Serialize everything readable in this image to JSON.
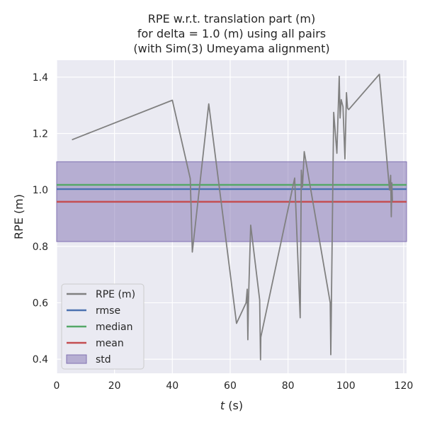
{
  "chart_data": {
    "type": "line",
    "title_lines": [
      "RPE w.r.t. translation part (m)",
      "for delta = 1.0 (m) using all pairs",
      "(with Sim(3) Umeyama alignment)"
    ],
    "xlabel_var": "t",
    "xlabel_unit": " (s)",
    "ylabel": "RPE (m)",
    "xlim": [
      0,
      121
    ],
    "ylim": [
      0.35,
      1.46
    ],
    "xticks": [
      0,
      20,
      40,
      60,
      80,
      100,
      120
    ],
    "yticks": [
      0.4,
      0.6,
      0.8,
      1.0,
      1.2,
      1.4
    ],
    "ytick_labels": [
      "0.4",
      "0.6",
      "0.8",
      "1.0",
      "1.2",
      "1.4"
    ],
    "grid": true,
    "legend_position": "lower-left",
    "colors": {
      "background": "#eaeaf2",
      "grid": "#ffffff",
      "rpe": "#808080",
      "rmse": "#4c72b0",
      "median": "#55a868",
      "mean": "#c44e52",
      "std": "#8172b2"
    },
    "stats": {
      "rmse": 1.003,
      "median": 1.018,
      "mean": 0.958,
      "std_range": [
        0.817,
        1.1
      ]
    },
    "legend": [
      {
        "key": "rpe",
        "label": "RPE (m)",
        "kind": "line"
      },
      {
        "key": "rmse",
        "label": "rmse",
        "kind": "line"
      },
      {
        "key": "median",
        "label": "median",
        "kind": "line"
      },
      {
        "key": "mean",
        "label": "mean",
        "kind": "line"
      },
      {
        "key": "std",
        "label": "std",
        "kind": "patch"
      }
    ],
    "series": [
      {
        "key": "rpe",
        "x": [
          5.3,
          40.0,
          46.2,
          46.9,
          52.6,
          62.2,
          65.5,
          65.9,
          66.1,
          66.3,
          67.1,
          70.2,
          70.5,
          70.6,
          82.3,
          84.2,
          84.6,
          85.0,
          85.3,
          85.6,
          94.6,
          94.8,
          95.8,
          96.9,
          97.7,
          98.0,
          98.4,
          99.0,
          99.7,
          100.2,
          100.6,
          101.0,
          111.6,
          115.1,
          115.5,
          115.7,
          115.9,
          116.1
        ],
        "y": [
          1.178,
          1.318,
          1.04,
          0.78,
          1.305,
          0.527,
          0.6,
          0.648,
          0.469,
          0.6,
          0.875,
          0.61,
          0.398,
          0.478,
          1.042,
          0.547,
          1.07,
          1.01,
          1.07,
          1.136,
          0.6,
          0.416,
          1.275,
          1.13,
          1.403,
          1.255,
          1.32,
          1.295,
          1.11,
          1.345,
          1.29,
          1.285,
          1.41,
          1.0,
          1.052,
          0.905,
          1.025,
          0.96
        ]
      }
    ]
  }
}
